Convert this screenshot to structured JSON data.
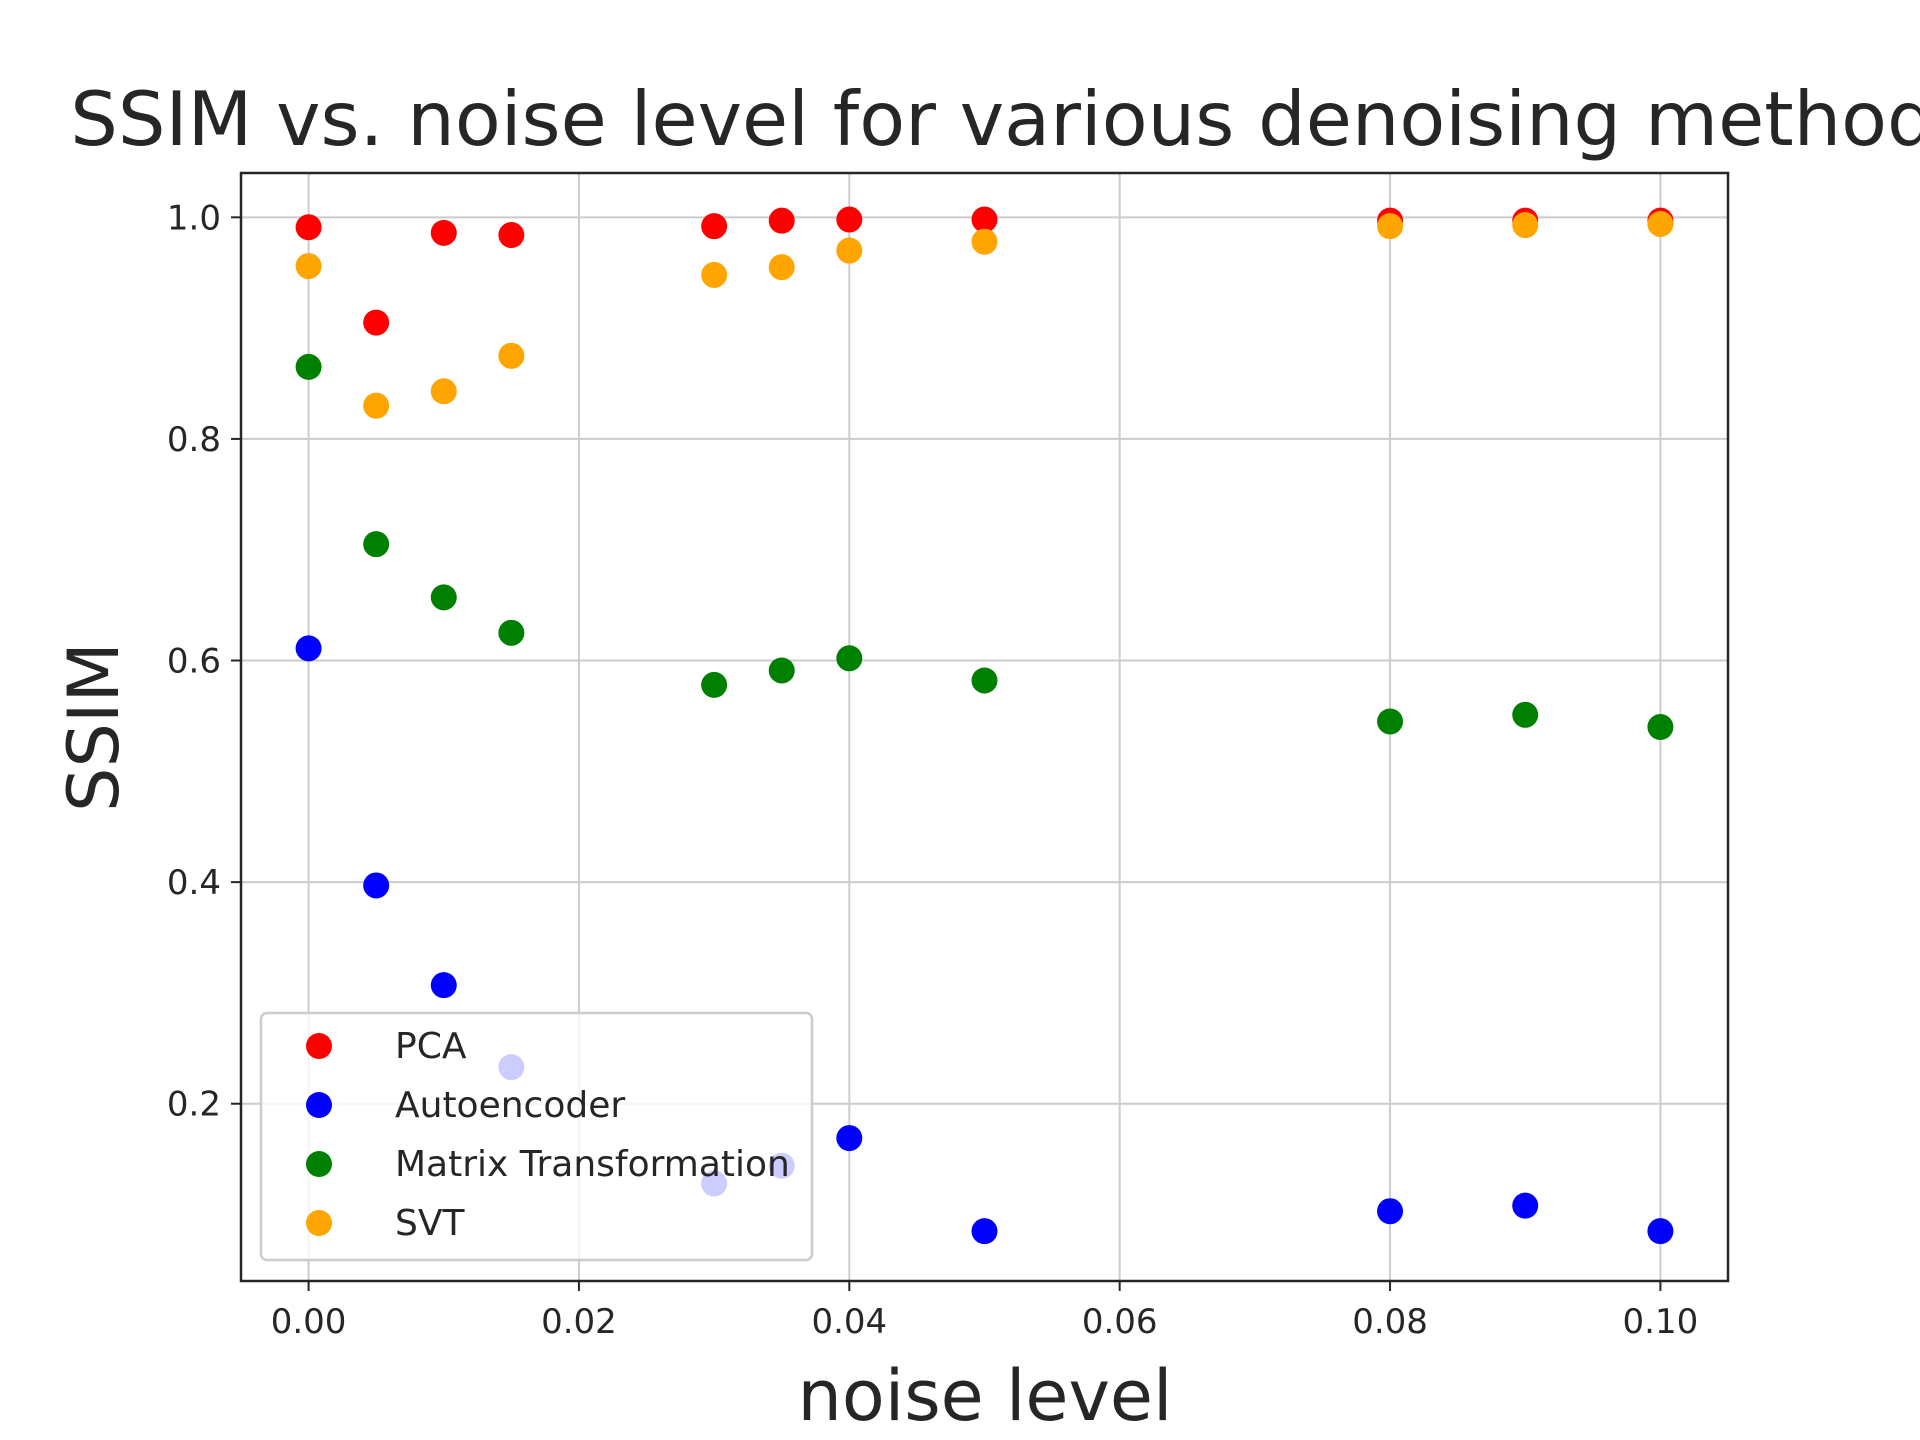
{
  "chart_data": {
    "type": "scatter",
    "title": "SSIM vs. noise level for various denoising methods",
    "xlabel": "noise level",
    "ylabel": "SSIM",
    "xlim": [
      -0.005,
      0.105
    ],
    "ylim": [
      0.04,
      1.04
    ],
    "xticks": [
      "0.00",
      "0.02",
      "0.04",
      "0.06",
      "0.08",
      "0.10"
    ],
    "yticks": [
      "0.2",
      "0.4",
      "0.6",
      "0.8",
      "1.0"
    ],
    "grid": true,
    "legend_position": "lower-left",
    "x": [
      0.0,
      0.005,
      0.01,
      0.015,
      0.03,
      0.035,
      0.04,
      0.05,
      0.08,
      0.09,
      0.1
    ],
    "series": [
      {
        "name": "PCA",
        "color": "#ff0000",
        "values": [
          0.991,
          0.905,
          0.986,
          0.984,
          0.992,
          0.997,
          0.998,
          0.998,
          0.997,
          0.997,
          0.997
        ]
      },
      {
        "name": "Autoencoder",
        "color": "#0000ff",
        "values": [
          0.611,
          0.397,
          0.307,
          0.233,
          0.128,
          0.144,
          0.169,
          0.085,
          0.103,
          0.108,
          0.085
        ]
      },
      {
        "name": "Matrix Transformation",
        "color": "#008000",
        "values": [
          0.865,
          0.705,
          0.657,
          0.625,
          0.578,
          0.591,
          0.602,
          0.582,
          0.545,
          0.551,
          0.54
        ]
      },
      {
        "name": "SVT",
        "color": "#ffa500",
        "values": [
          0.956,
          0.83,
          0.843,
          0.875,
          0.948,
          0.955,
          0.97,
          0.978,
          0.992,
          0.993,
          0.994
        ]
      }
    ]
  }
}
